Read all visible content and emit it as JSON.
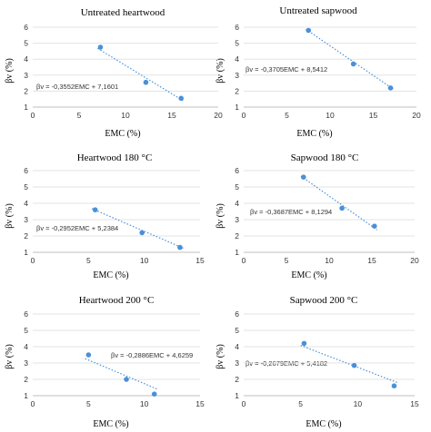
{
  "chart_data": [
    {
      "type": "scatter",
      "title": "Untreated heartwood",
      "xlabel": "EMC (%)",
      "ylabel": "βv (%)",
      "xlim": [
        0,
        20
      ],
      "ylim": [
        1,
        6
      ],
      "xticks": [
        0,
        5,
        10,
        15,
        20
      ],
      "yticks": [
        1,
        2,
        3,
        4,
        5,
        6
      ],
      "points": [
        {
          "x": 7.3,
          "y": 4.75
        },
        {
          "x": 12.2,
          "y": 2.55
        },
        {
          "x": 16.0,
          "y": 1.55
        }
      ],
      "equation": "βv = -0,3552EMC + 7,1601",
      "trendline": {
        "slope": -0.3552,
        "intercept": 7.1601
      }
    },
    {
      "type": "scatter",
      "title": "Untreated sapwood",
      "xlabel": "EMC (%)",
      "ylabel": "βv (%)",
      "xlim": [
        0,
        20
      ],
      "ylim": [
        1,
        6
      ],
      "xticks": [
        0,
        5,
        10,
        15,
        20
      ],
      "yticks": [
        1,
        2,
        3,
        4,
        5,
        6
      ],
      "points": [
        {
          "x": 7.5,
          "y": 5.8
        },
        {
          "x": 12.7,
          "y": 3.7
        },
        {
          "x": 17.0,
          "y": 2.2
        }
      ],
      "equation": "βv = -0,3705EMC + 8,5412",
      "trendline": {
        "slope": -0.3705,
        "intercept": 8.5412
      }
    },
    {
      "type": "scatter",
      "title": "Heartwood 180 °C",
      "xlabel": "EMC (%)",
      "ylabel": "βv (%)",
      "xlim": [
        0,
        15
      ],
      "ylim": [
        1,
        6
      ],
      "xticks": [
        0,
        5,
        10,
        15
      ],
      "yticks": [
        1,
        2,
        3,
        4,
        5,
        6
      ],
      "points": [
        {
          "x": 5.6,
          "y": 3.6
        },
        {
          "x": 9.8,
          "y": 2.2
        },
        {
          "x": 13.2,
          "y": 1.3
        }
      ],
      "equation": "βv = -0,2952EMC + 5,2384",
      "trendline": {
        "slope": -0.2952,
        "intercept": 5.2384
      }
    },
    {
      "type": "scatter",
      "title": "Sapwood 180 °C",
      "xlabel": "EMC (%)",
      "ylabel": "βv (%)",
      "xlim": [
        0,
        20
      ],
      "ylim": [
        1,
        6
      ],
      "xticks": [
        0,
        5,
        10,
        15,
        20
      ],
      "yticks": [
        1,
        2,
        3,
        4,
        5,
        6
      ],
      "points": [
        {
          "x": 7.0,
          "y": 5.6
        },
        {
          "x": 11.5,
          "y": 3.7
        },
        {
          "x": 15.3,
          "y": 2.6
        }
      ],
      "equation": "βv = -0,3687EMC + 8,1294",
      "trendline": {
        "slope": -0.3687,
        "intercept": 8.1294
      }
    },
    {
      "type": "scatter",
      "title": "Heartwood 200 °C",
      "xlabel": "EMC (%)",
      "ylabel": "βv (%)",
      "xlim": [
        0,
        15
      ],
      "ylim": [
        1,
        6
      ],
      "xticks": [
        0,
        5,
        10,
        15
      ],
      "yticks": [
        1,
        2,
        3,
        4,
        5,
        6
      ],
      "points": [
        {
          "x": 5.0,
          "y": 3.5
        },
        {
          "x": 8.4,
          "y": 2.0
        },
        {
          "x": 10.9,
          "y": 1.1
        }
      ],
      "equation": "βv = -0,2886EMC + 4,6259",
      "trendline": {
        "slope": -0.2886,
        "intercept": 4.6259
      }
    },
    {
      "type": "scatter",
      "title": "Sapwood 200 °C",
      "xlabel": "EMC (%)",
      "ylabel": "βv (%)",
      "xlim": [
        0,
        15
      ],
      "ylim": [
        1,
        6
      ],
      "xticks": [
        0,
        5,
        10,
        15
      ],
      "yticks": [
        1,
        2,
        3,
        4,
        5,
        6
      ],
      "points": [
        {
          "x": 5.3,
          "y": 4.2
        },
        {
          "x": 9.7,
          "y": 2.85
        },
        {
          "x": 13.2,
          "y": 1.6
        }
      ],
      "equation": "βv = -0,2679EMC + 5,4182",
      "trendline": {
        "slope": -0.2679,
        "intercept": 5.4182
      }
    }
  ],
  "colors": {
    "marker": "#4a90d9",
    "trend": "#4a90d9",
    "grid": "#e3e3e3"
  }
}
